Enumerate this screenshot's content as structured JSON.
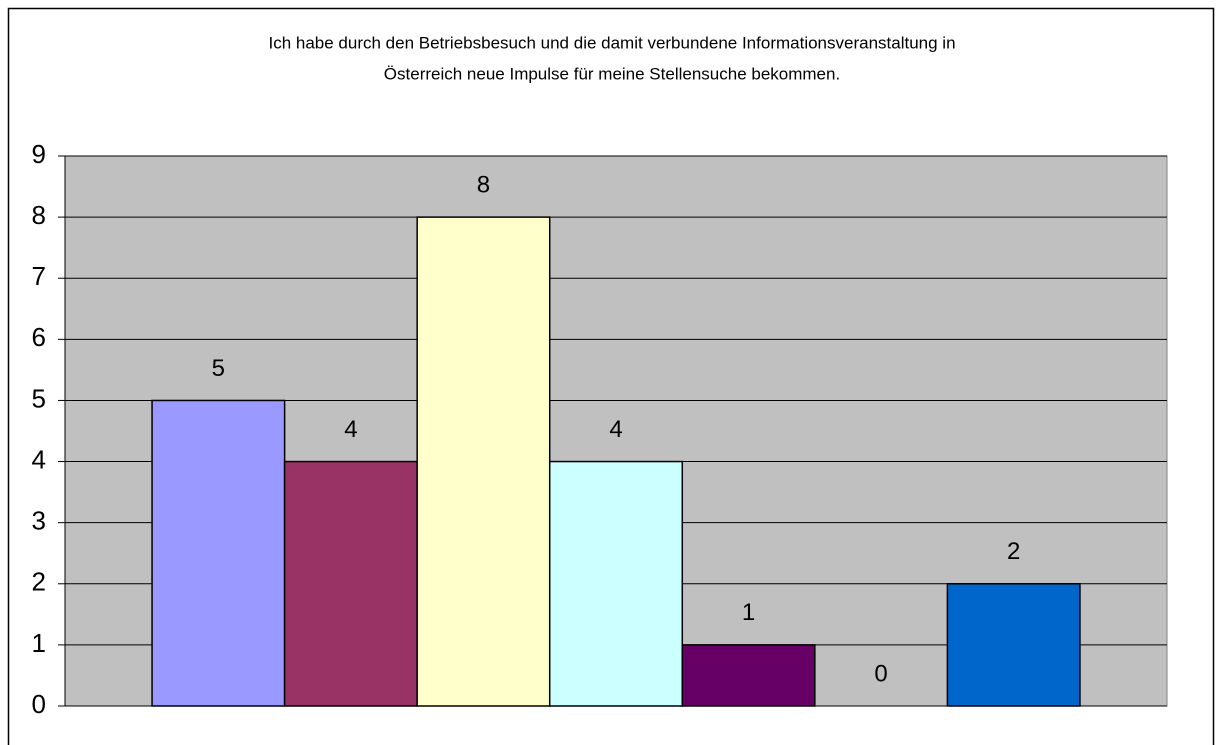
{
  "chart_data": {
    "type": "bar",
    "title": [
      "Ich habe durch den Betriebsbesuch und die damit verbundene Informationsveranstaltung in",
      "Österreich neue Impulse für meine Stellensuche bekommen."
    ],
    "categories": [
      null
    ],
    "series": [
      {
        "color": "#9999ff",
        "values": [
          5
        ]
      },
      {
        "color": "#993366",
        "values": [
          4
        ]
      },
      {
        "color": "#ffffcc",
        "values": [
          8
        ]
      },
      {
        "color": "#ccffff",
        "values": [
          4
        ]
      },
      {
        "color": "#660066",
        "values": [
          1
        ]
      },
      {
        "values": [
          0
        ]
      },
      {
        "color": "#0066cc",
        "values": [
          2
        ]
      }
    ],
    "ylim": [
      0,
      9
    ],
    "yticks": [
      0,
      1,
      2,
      3,
      4,
      5,
      6,
      7,
      8,
      9
    ],
    "grid": true,
    "plot_background": "#c0c0c0"
  }
}
